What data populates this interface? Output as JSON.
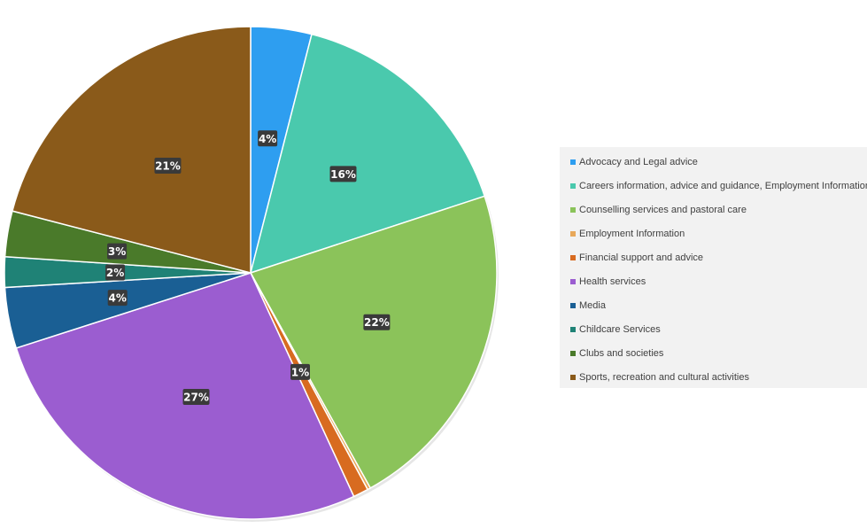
{
  "chart_data": {
    "type": "pie",
    "title": "",
    "start_angle_deg": 0,
    "direction": "clockwise",
    "legend_position": "right",
    "slices": [
      {
        "name": "Advocacy and Legal advice",
        "value": 4,
        "label": "4%",
        "color": "#2e9ef0"
      },
      {
        "name": "Careers information, advice and guidance, Employment Information",
        "value": 16,
        "label": "16%",
        "color": "#4ac9ad"
      },
      {
        "name": "Counselling services and pastoral care",
        "value": 22,
        "label": "22%",
        "color": "#8bc35a"
      },
      {
        "name": "Employment Information",
        "value": 0.2,
        "label": "",
        "color": "#e8a85a"
      },
      {
        "name": "Financial support and advice",
        "value": 1,
        "label": "1%",
        "color": "#d86b20"
      },
      {
        "name": "Health services",
        "value": 27,
        "label": "27%",
        "color": "#9b5dd0"
      },
      {
        "name": "Media",
        "value": 4,
        "label": "4%",
        "color": "#1a5f94"
      },
      {
        "name": "Childcare Services",
        "value": 2,
        "label": "2%",
        "color": "#1f8276"
      },
      {
        "name": "Clubs and societies",
        "value": 3,
        "label": "3%",
        "color": "#4a7a2a"
      },
      {
        "name": "Sports, recreation and cultural activities",
        "value": 21,
        "label": "21%",
        "color": "#8a5a1a"
      }
    ]
  }
}
